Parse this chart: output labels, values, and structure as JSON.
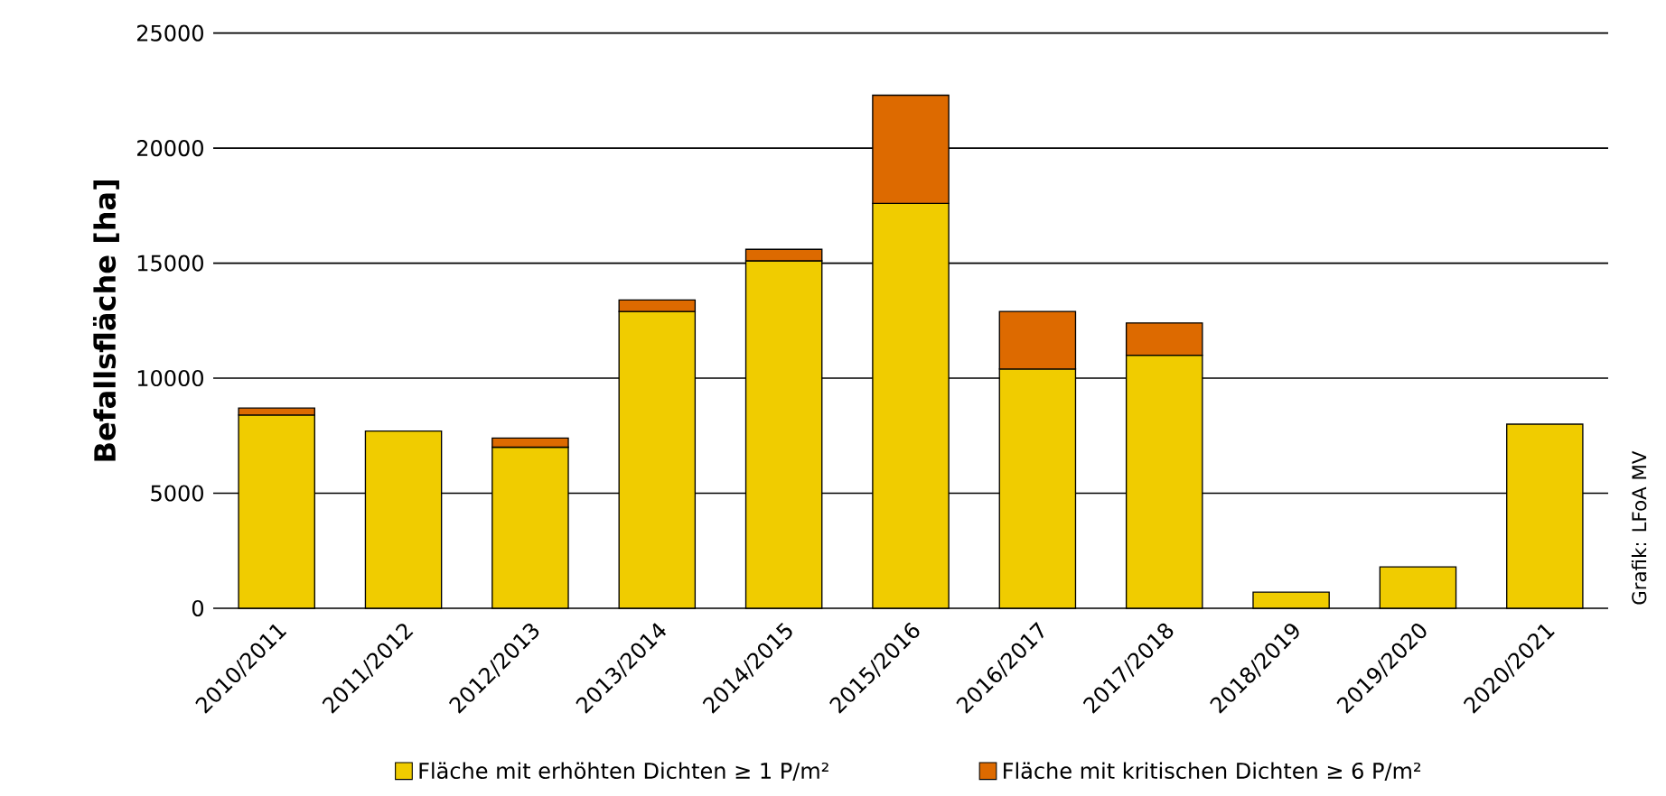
{
  "chart_data": {
    "type": "bar",
    "stacked": true,
    "ylabel": "Befallsfläche [ha]",
    "categories": [
      "2010/2011",
      "2011/2012",
      "2012/2013",
      "2013/2014",
      "2014/2015",
      "2015/2016",
      "2016/2017",
      "2017/2018",
      "2018/2019",
      "2019/2020",
      "2020/2021"
    ],
    "series": [
      {
        "name": "Fläche mit erhöhten Dichten ≥ 1 P/m²",
        "color": "#f0cc00",
        "values": [
          8400,
          7700,
          7000,
          12900,
          15100,
          17600,
          10400,
          11000,
          700,
          1800,
          8000
        ]
      },
      {
        "name": "Fläche mit kritischen Dichten ≥ 6 P/m²",
        "color": "#dd6a00",
        "values": [
          300,
          null,
          400,
          500,
          500,
          4700,
          2500,
          1400,
          null,
          null,
          null
        ]
      }
    ],
    "ylim": [
      0,
      25000
    ],
    "yticks": [
      0,
      5000,
      10000,
      15000,
      20000,
      25000
    ],
    "grid": "y",
    "legend": "bottom",
    "annotations": [
      "Grafik: LFoA MV"
    ]
  }
}
